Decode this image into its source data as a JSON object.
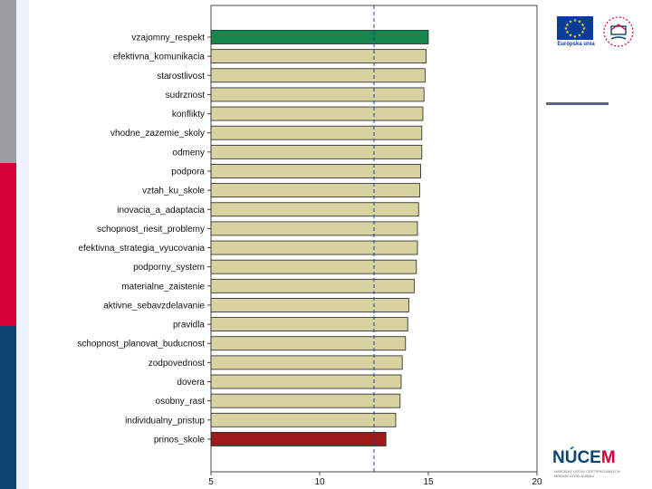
{
  "chart_data": {
    "type": "bar",
    "orientation": "horizontal",
    "categories": [
      "vzajomny_respekt",
      "efektivna_komunikacia",
      "starostlivost",
      "sudrznost",
      "konflikty",
      "vhodne_zazemie_skoly",
      "odmeny",
      "podpora",
      "vztah_ku_skole",
      "inovacia_a_adaptacia",
      "schopnost_riesit_problemy",
      "efektivna_strategia_vyucovania",
      "podporny_system",
      "materialne_zaistenie",
      "aktivne_sebavzdelavanie",
      "pravidla",
      "schopnost_planovat_buducnost",
      "zodpovednost",
      "dovera",
      "osobny_rast",
      "individualny_pristup",
      "prinos_skole"
    ],
    "values": [
      15.0,
      14.9,
      14.85,
      14.8,
      14.75,
      14.7,
      14.7,
      14.65,
      14.6,
      14.55,
      14.5,
      14.5,
      14.45,
      14.35,
      14.1,
      14.05,
      13.95,
      13.8,
      13.75,
      13.7,
      13.5,
      13.05
    ],
    "bar_colors": [
      "#15874a",
      "#d8d1a0",
      "#d8d1a0",
      "#d8d1a0",
      "#d8d1a0",
      "#d8d1a0",
      "#d8d1a0",
      "#d8d1a0",
      "#d8d1a0",
      "#d8d1a0",
      "#d8d1a0",
      "#d8d1a0",
      "#d8d1a0",
      "#d8d1a0",
      "#d8d1a0",
      "#d8d1a0",
      "#d8d1a0",
      "#d8d1a0",
      "#d8d1a0",
      "#d8d1a0",
      "#d8d1a0",
      "#9c1a1a"
    ],
    "xlim": [
      5,
      20
    ],
    "xticks": [
      "5",
      "10",
      "15",
      "20"
    ],
    "reference_line": 12.5,
    "reference_line_color": "#1f3f9e",
    "grid": false,
    "title": "",
    "xlabel": "",
    "ylabel": ""
  },
  "logos": {
    "eu_caption": "Európska únia",
    "nucem_name": "NÚCEM",
    "nucem_prefix": "NÚCE",
    "nucem_suffix": "M",
    "nucem_subtitle": "NÁRODNÝ ÚSTAV CERTIFIKOVANÝCH MERANÍ VZDELÁVANIA"
  },
  "colors": {
    "strip_gray": "#9a9da2",
    "strip_red": "#d5003a",
    "strip_blue": "#0d4470"
  }
}
